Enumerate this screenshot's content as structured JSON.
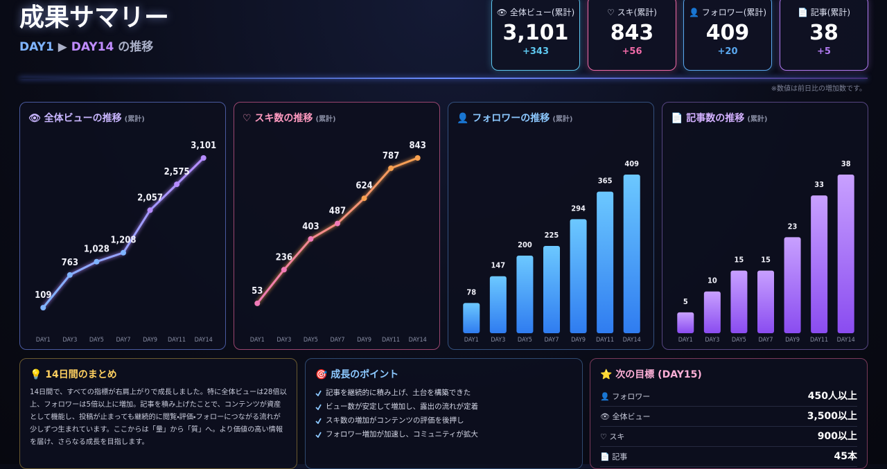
{
  "header": {
    "title": "成果サマリー",
    "range_start": "DAY1",
    "range_arrow": "▶",
    "range_end": "DAY14",
    "range_suffix": "の推移"
  },
  "kpis": [
    {
      "label": "👁 全体ビュー(累計)",
      "value": "3,101",
      "delta": "+343",
      "color": "#5ec8f0"
    },
    {
      "label": "♡ スキ(累計)",
      "value": "843",
      "delta": "+56",
      "color": "#f06aa8"
    },
    {
      "label": "👤 フォロワー(累計)",
      "value": "409",
      "delta": "+20",
      "color": "#5aa8f0"
    },
    {
      "label": "📄 記事(累計)",
      "value": "38",
      "delta": "+5",
      "color": "#b07af0"
    }
  ],
  "note": "※数値は前日比の増加数です。",
  "chart_data": [
    {
      "type": "line",
      "title": "👁 全体ビューの推移",
      "subtitle": "(累計)",
      "categories": [
        "DAY1",
        "DAY3",
        "DAY5",
        "DAY7",
        "DAY9",
        "DAY11",
        "DAY14"
      ],
      "values": [
        109,
        763,
        1028,
        1208,
        2057,
        2575,
        3101
      ],
      "value_labels": [
        "109",
        "763",
        "1,028",
        "1,208",
        "2,057",
        "2,575",
        "3,101"
      ],
      "colors": [
        "#7fb4ff",
        "#b58cff"
      ]
    },
    {
      "type": "line",
      "title": "♡ スキ数の推移",
      "subtitle": "(累計)",
      "categories": [
        "DAY1",
        "DAY3",
        "DAY5",
        "DAY7",
        "DAY9",
        "DAY11",
        "DAY14"
      ],
      "values": [
        53,
        236,
        403,
        487,
        624,
        787,
        843
      ],
      "colors": [
        "#f07ab8",
        "#f7a050"
      ]
    },
    {
      "type": "bar",
      "title": "👤 フォロワーの推移",
      "subtitle": "(累計)",
      "categories": [
        "DAY1",
        "DAY3",
        "DAY5",
        "DAY7",
        "DAY9",
        "DAY11",
        "DAY14"
      ],
      "values": [
        78,
        147,
        200,
        225,
        294,
        365,
        409
      ],
      "colors": [
        "#6cc8ff",
        "#2f7cf0"
      ]
    },
    {
      "type": "bar",
      "title": "📄 記事数の推移",
      "subtitle": "(累計)",
      "categories": [
        "DAY1",
        "DAY3",
        "DAY5",
        "DAY7",
        "DAY9",
        "DAY11",
        "DAY14"
      ],
      "values": [
        5,
        10,
        15,
        15,
        23,
        33,
        38
      ],
      "colors": [
        "#c8a0ff",
        "#8a4cf0"
      ]
    }
  ],
  "summary": {
    "title": "💡 14日間のまとめ",
    "text": "14日間で、すべての指標が右肩上がりで成長しました。特に全体ビューは28倍以上、フォロワーは5倍以上に増加。記事を積み上げたことで、コンテンツが資産として機能し、投稿が止まっても継続的に閲覧・評価・フォローにつながる流れが少しずつ生まれています。ここからは「量」から「質」へ。より価値の高い情報を届け、さらなる成長を目指します。"
  },
  "points": {
    "title": "🎯 成長のポイント",
    "items": [
      "記事を継続的に積み上げ、土台を構築できた",
      "ビュー数が安定して増加し、露出の流れが定着",
      "スキ数の増加がコンテンツの評価を後押し",
      "フォロワー増加が加速し、コミュニティが拡大"
    ]
  },
  "goals": {
    "title": "⭐ 次の目標 (DAY15)",
    "rows": [
      {
        "label": "👤 フォロワー",
        "value": "450人以上"
      },
      {
        "label": "👁 全体ビュー",
        "value": "3,500以上"
      },
      {
        "label": "♡ スキ",
        "value": "900以上"
      },
      {
        "label": "📄 記事",
        "value": "45本"
      }
    ]
  }
}
